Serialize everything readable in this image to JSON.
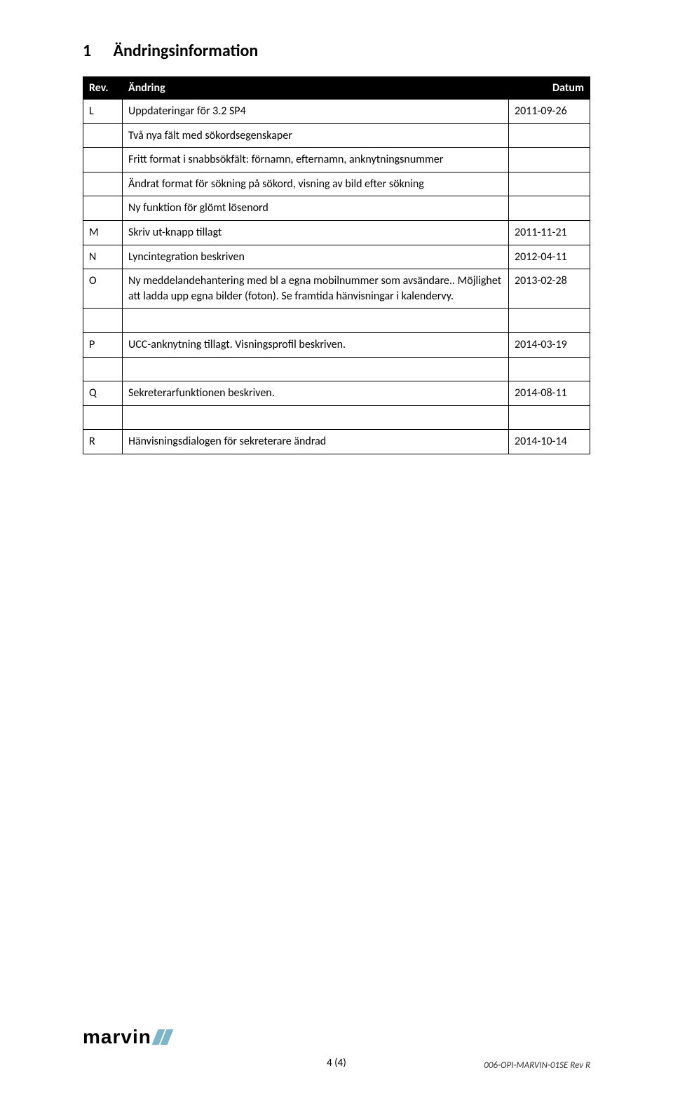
{
  "section": {
    "number": "1",
    "title": "Ändringsinformation"
  },
  "table": {
    "headers": {
      "rev": "Rev.",
      "change": "Ändring",
      "date": "Datum"
    },
    "rows": [
      {
        "rev": "L",
        "change": "Uppdateringar för 3.2 SP4",
        "date": "2011-09-26"
      },
      {
        "rev": "",
        "change": "Två nya fält med sökordsegenskaper",
        "date": ""
      },
      {
        "rev": "",
        "change": "Fritt format i snabbsökfält: förnamn, efternamn, anknytningsnummer",
        "date": ""
      },
      {
        "rev": "",
        "change": "Ändrat format för sökning på sökord, visning av bild efter sökning",
        "date": ""
      },
      {
        "rev": "",
        "change": "Ny funktion för glömt lösenord",
        "date": ""
      },
      {
        "rev": "M",
        "change": "Skriv ut-knapp tillagt",
        "date": "2011-11-21"
      },
      {
        "rev": "N",
        "change": "Lyncintegration beskriven",
        "date": "2012-04-11"
      },
      {
        "rev": "O",
        "change": "Ny meddelandehantering med bl a egna mobilnummer som avsändare.. Möjlighet att ladda upp egna bilder (foton). Se framtida hänvisningar i kalendervy.",
        "date": "2013-02-28"
      },
      {
        "rev": "P",
        "change": "UCC-anknytning tillagt. Visningsprofil beskriven.",
        "date": "2014-03-19"
      },
      {
        "rev": "Q",
        "change": "Sekreterarfunktionen beskriven.",
        "date": "2014-08-11"
      },
      {
        "rev": "R",
        "change": "Hänvisningsdialogen för sekreterare ändrad",
        "date": "2014-10-14"
      }
    ],
    "blank_rows_after": [
      7,
      8,
      9
    ]
  },
  "footer": {
    "logo_text": "marvin",
    "page_info": "4 (4)",
    "doc_ref": "006-OPI-MARVIN-01SE Rev R"
  },
  "colors": {
    "header_bg": "#000000",
    "header_fg": "#ffffff",
    "logo_accent": "#7fb5c9"
  }
}
